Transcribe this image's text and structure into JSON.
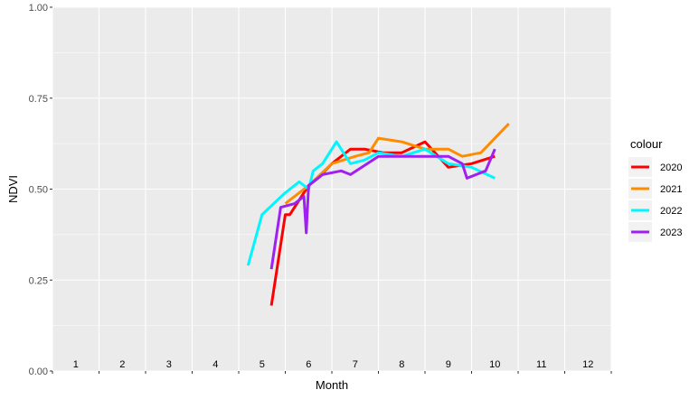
{
  "chart_data": {
    "type": "line",
    "title": "",
    "xlabel": "Month",
    "ylabel": "NDVI",
    "ylim": [
      0,
      1
    ],
    "xlim": [
      0.5,
      12.5
    ],
    "y_ticks": [
      "0.00",
      "0.25",
      "0.50",
      "0.75",
      "1.00"
    ],
    "month_labels": [
      "1",
      "2",
      "3",
      "4",
      "5",
      "6",
      "7",
      "8",
      "9",
      "10",
      "11",
      "12"
    ],
    "grid": true,
    "legend": {
      "title": "colour",
      "position": "right"
    },
    "series": [
      {
        "name": "2020",
        "color": "#ff0000",
        "x": [
          5.2,
          5.5,
          5.6,
          5.8,
          6.0,
          6.2,
          6.5,
          6.9,
          7.2,
          7.6,
          8.0,
          8.5,
          9.0,
          9.5,
          10.0
        ],
        "y": [
          0.18,
          0.43,
          0.43,
          0.47,
          0.51,
          0.53,
          0.57,
          0.61,
          0.61,
          0.6,
          0.6,
          0.63,
          0.56,
          0.57,
          0.59
        ]
      },
      {
        "name": "2021",
        "color": "#ff8c00",
        "x": [
          5.5,
          5.7,
          6.0,
          6.5,
          7.0,
          7.3,
          7.5,
          8.0,
          8.5,
          9.0,
          9.3,
          9.7,
          10.0,
          10.3
        ],
        "y": [
          0.46,
          0.48,
          0.51,
          0.57,
          0.59,
          0.6,
          0.64,
          0.63,
          0.61,
          0.61,
          0.59,
          0.6,
          0.64,
          0.68
        ]
      },
      {
        "name": "2022",
        "color": "#00f5ff",
        "x": [
          4.7,
          5.0,
          5.5,
          5.8,
          6.0,
          6.1,
          6.3,
          6.6,
          6.9,
          7.2,
          7.5,
          8.0,
          8.5,
          9.0,
          9.5,
          10.0
        ],
        "y": [
          0.29,
          0.43,
          0.49,
          0.52,
          0.5,
          0.55,
          0.57,
          0.63,
          0.57,
          0.58,
          0.6,
          0.59,
          0.61,
          0.57,
          0.56,
          0.53
        ]
      },
      {
        "name": "2023",
        "color": "#a020f0",
        "x": [
          5.2,
          5.4,
          5.7,
          5.9,
          5.95,
          6.0,
          6.3,
          6.7,
          6.9,
          7.5,
          8.0,
          8.5,
          9.0,
          9.3,
          9.4,
          9.8,
          10.0
        ],
        "y": [
          0.28,
          0.45,
          0.46,
          0.48,
          0.38,
          0.51,
          0.54,
          0.55,
          0.54,
          0.59,
          0.59,
          0.59,
          0.59,
          0.57,
          0.53,
          0.55,
          0.61
        ]
      }
    ]
  }
}
